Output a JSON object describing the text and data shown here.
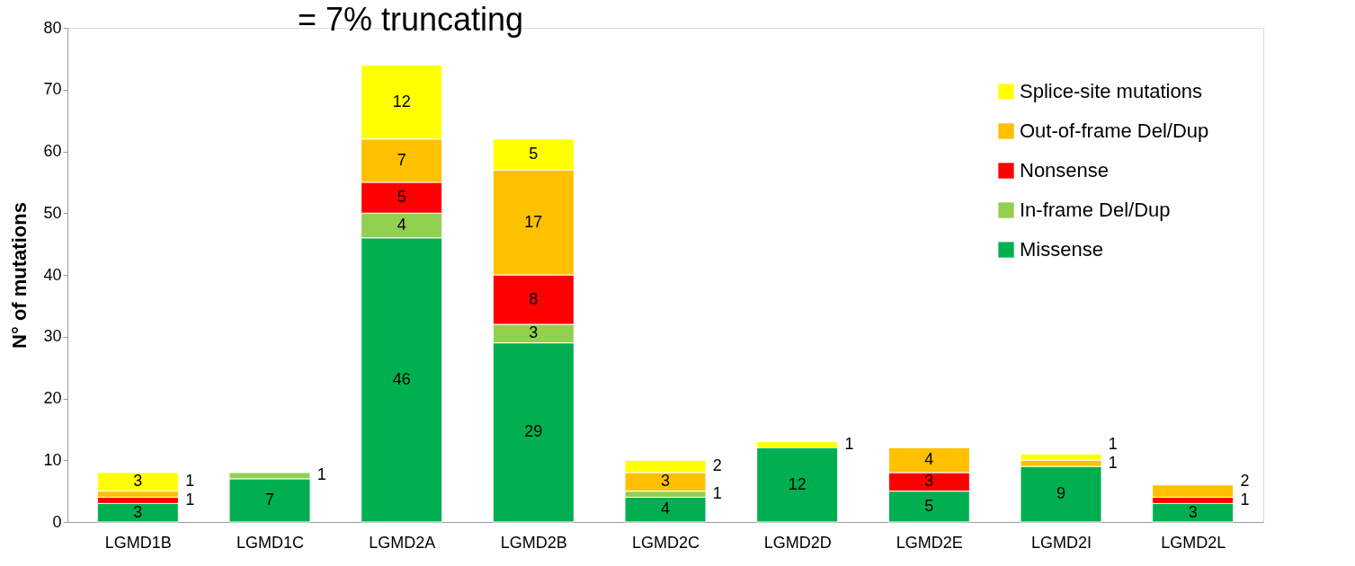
{
  "chart_data": {
    "type": "bar",
    "title": "= 7% truncating",
    "ylabel": "N° of mutations",
    "categories": [
      "LGMD1B",
      "LGMD1C",
      "LGMD2A",
      "LGMD2B",
      "LGMD2C",
      "LGMD2D",
      "LGMD2E",
      "LGMD2I",
      "LGMD2L"
    ],
    "stacked": true,
    "data_labels": true,
    "grid": false,
    "legend": "top right",
    "ylim": [
      0,
      80
    ],
    "yticks": [
      0,
      10,
      20,
      30,
      40,
      50,
      60,
      70,
      80
    ],
    "series": [
      {
        "name": "Missense",
        "color": "#00b050",
        "values": [
          3,
          7,
          46,
          29,
          4,
          12,
          5,
          9,
          3
        ]
      },
      {
        "name": "In-frame Del/Dup",
        "color": "#92d050",
        "values": [
          null,
          1,
          4,
          3,
          1,
          null,
          null,
          null,
          null
        ]
      },
      {
        "name": "Nonsense",
        "color": "#ff0000",
        "values": [
          1,
          null,
          5,
          8,
          null,
          null,
          3,
          null,
          1
        ]
      },
      {
        "name": "Out-of-frame Del/Dup",
        "color": "#ffc000",
        "values": [
          1,
          null,
          7,
          17,
          3,
          null,
          4,
          1,
          2
        ]
      },
      {
        "name": "Splice-site mutations",
        "color": "#ffff00",
        "values": [
          3,
          null,
          12,
          5,
          2,
          1,
          null,
          1,
          null
        ]
      }
    ]
  }
}
